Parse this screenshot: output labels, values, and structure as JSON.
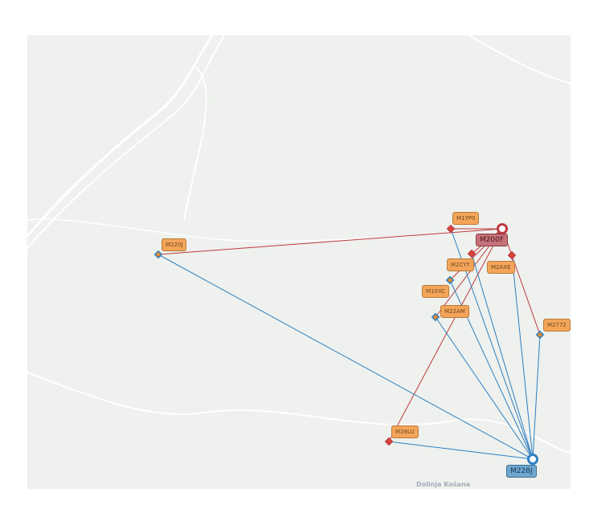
{
  "map": {
    "place_label": "Dolinja Košana",
    "colors": {
      "red_link": "#c0393f",
      "blue_link": "#2f7fc1",
      "label_bg": "#f4a55a",
      "hub_red": "#c7727a",
      "hub_blue": "#6fa7d0",
      "background": "#eef1ed"
    },
    "nodes": [
      {
        "id": "M200F",
        "type": "hub-red"
      },
      {
        "id": "M228J",
        "type": "hub-blue"
      },
      {
        "id": "M220J",
        "type": "blue"
      },
      {
        "id": "M1YP0",
        "type": "red"
      },
      {
        "id": "M2CYT",
        "type": "red"
      },
      {
        "id": "M2AXE",
        "type": "red"
      },
      {
        "id": "M10XC",
        "type": "blue"
      },
      {
        "id": "M22AM",
        "type": "blue"
      },
      {
        "id": "M2772",
        "type": "blue"
      },
      {
        "id": "M28LU",
        "type": "red"
      }
    ],
    "red_links": [
      [
        "M200F",
        "M220J"
      ],
      [
        "M200F",
        "M1YP0"
      ],
      [
        "M200F",
        "M2CYT"
      ],
      [
        "M200F",
        "M10XC"
      ],
      [
        "M200F",
        "M22AM"
      ],
      [
        "M200F",
        "M28LU"
      ],
      [
        "M200F",
        "M2AXE"
      ],
      [
        "M2AXE",
        "M2772"
      ]
    ],
    "blue_links": [
      [
        "M228J",
        "M220J"
      ],
      [
        "M228J",
        "M28LU"
      ],
      [
        "M228J",
        "M22AM"
      ],
      [
        "M228J",
        "M10XC"
      ],
      [
        "M228J",
        "M1YP0"
      ],
      [
        "M228J",
        "M2CYT"
      ],
      [
        "M228J",
        "M2AXE"
      ],
      [
        "M228J",
        "M2772"
      ]
    ]
  }
}
